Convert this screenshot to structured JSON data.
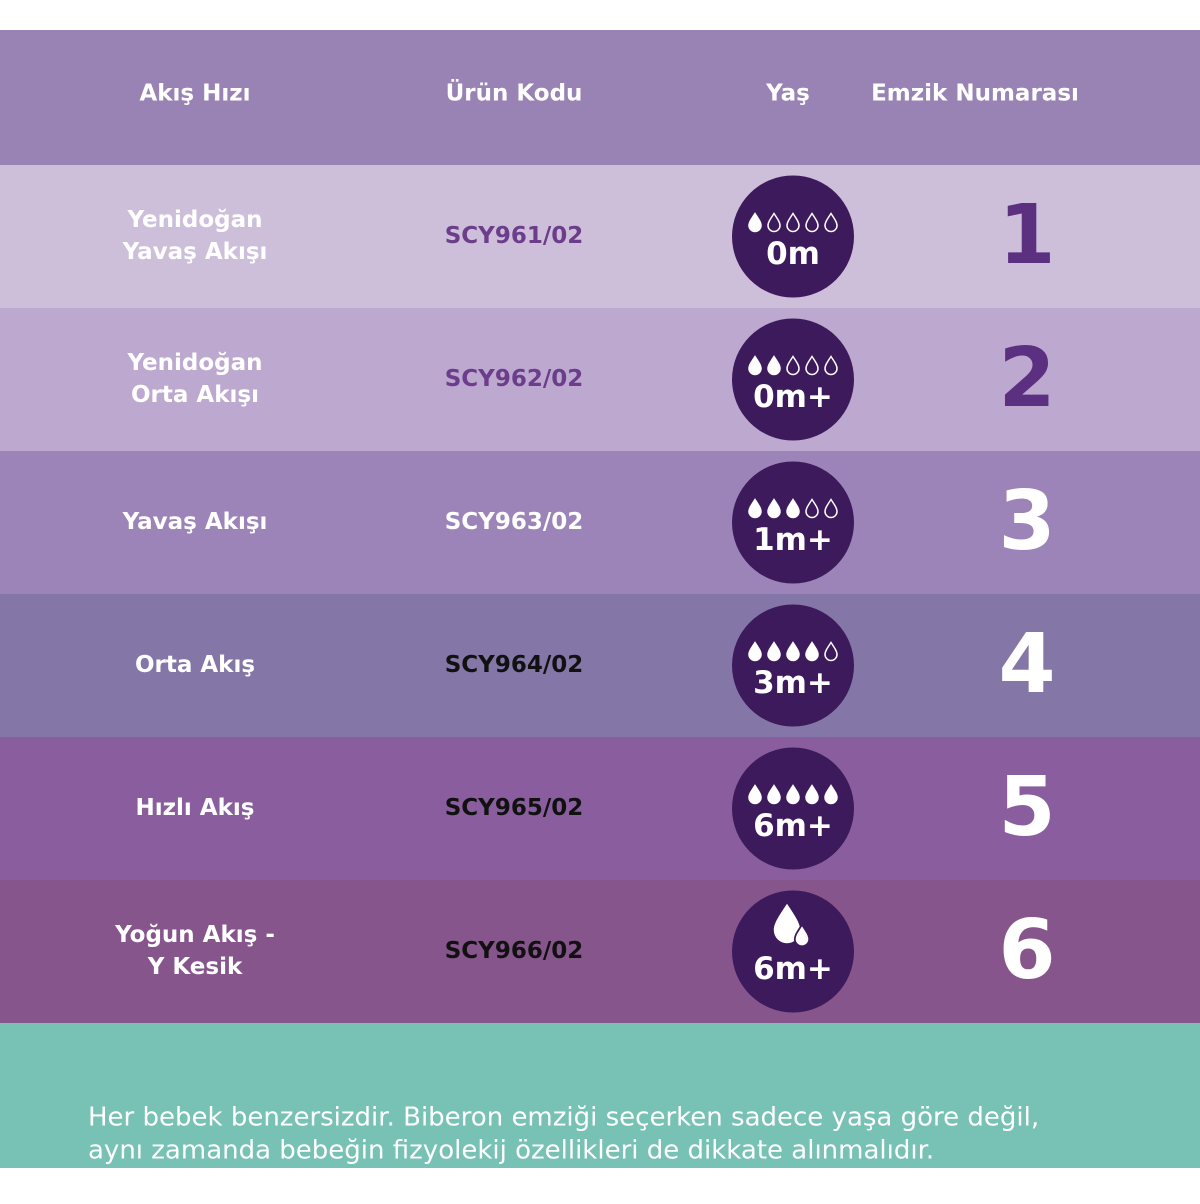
{
  "header": {
    "columns": [
      "Akış Hızı",
      "Ürün Kodu",
      "Yaş",
      "Emzik Numarası"
    ]
  },
  "rows": [
    {
      "flow": [
        "Yenidoğan",
        "Yavaş Akışı"
      ],
      "code": "SCY961/02",
      "age": "0m",
      "number": "1"
    },
    {
      "flow": [
        "Yenidoğan",
        "Orta Akışı"
      ],
      "code": "SCY962/02",
      "age": "0m+",
      "number": "2"
    },
    {
      "flow": [
        "Yavaş Akışı"
      ],
      "code": "SCY963/02",
      "age": "1m+",
      "number": "3"
    },
    {
      "flow": [
        "Orta Akış"
      ],
      "code": "SCY964/02",
      "age": "3m+",
      "number": "4"
    },
    {
      "flow": [
        "Hızlı Akış"
      ],
      "code": "SCY965/02",
      "age": "6m+",
      "number": "5"
    },
    {
      "flow": [
        "Yoğun Akış -",
        "Y Kesik"
      ],
      "code": "SCY966/02",
      "age": "6m+",
      "number": "6"
    }
  ],
  "footer": {
    "lines": [
      "Her bebek benzersizdir. Biberon emziği seçerken sadece yaşa göre değil,",
      "aynı zamanda bebeğin fizyolekij özellikleri de dikkate alınmalıdır."
    ]
  }
}
